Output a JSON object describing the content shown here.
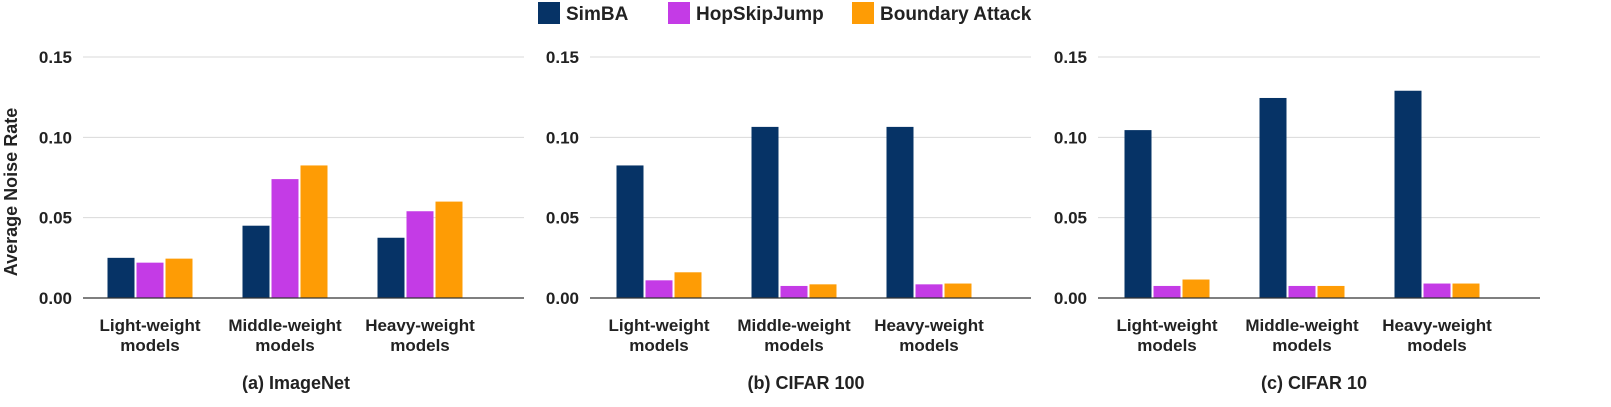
{
  "colors": {
    "SimBA": "#063366",
    "HopSkipJump": "#c43be6",
    "Boundary Attack": "#fe9c05"
  },
  "legend": [
    "SimBA",
    "HopSkipJump",
    "Boundary Attack"
  ],
  "y_axis_label": "Average Noise Rate",
  "chart_data": [
    {
      "type": "bar",
      "title": "(a) ImageNet",
      "categories": [
        [
          "Light-weight",
          "models"
        ],
        [
          "Middle-weight",
          "models"
        ],
        [
          "Heavy-weight",
          "models"
        ]
      ],
      "series": [
        {
          "name": "SimBA",
          "values": [
            0.025,
            0.045,
            0.0375
          ]
        },
        {
          "name": "HopSkipJump",
          "values": [
            0.022,
            0.074,
            0.054
          ]
        },
        {
          "name": "Boundary Attack",
          "values": [
            0.0245,
            0.0825,
            0.06
          ]
        }
      ],
      "ylabel": "Average Noise Rate",
      "ylim": [
        0,
        0.15
      ],
      "yticks": [
        "0.00",
        "0.05",
        "0.10",
        "0.15"
      ],
      "grid": true
    },
    {
      "type": "bar",
      "title": "(b) CIFAR 100",
      "categories": [
        [
          "Light-weight",
          "models"
        ],
        [
          "Middle-weight",
          "models"
        ],
        [
          "Heavy-weight",
          "models"
        ]
      ],
      "series": [
        {
          "name": "SimBA",
          "values": [
            0.0825,
            0.1065,
            0.1065
          ]
        },
        {
          "name": "HopSkipJump",
          "values": [
            0.011,
            0.0075,
            0.0085
          ]
        },
        {
          "name": "Boundary Attack",
          "values": [
            0.016,
            0.0085,
            0.009
          ]
        }
      ],
      "ylabel": "",
      "ylim": [
        0,
        0.15
      ],
      "yticks": [
        "0.00",
        "0.05",
        "0.10",
        "0.15"
      ],
      "grid": true
    },
    {
      "type": "bar",
      "title": "(c) CIFAR 10",
      "categories": [
        [
          "Light-weight",
          "models"
        ],
        [
          "Middle-weight",
          "models"
        ],
        [
          "Heavy-weight",
          "models"
        ]
      ],
      "series": [
        {
          "name": "SimBA",
          "values": [
            0.1045,
            0.1245,
            0.129
          ]
        },
        {
          "name": "HopSkipJump",
          "values": [
            0.0075,
            0.0075,
            0.009
          ]
        },
        {
          "name": "Boundary Attack",
          "values": [
            0.0115,
            0.0075,
            0.009
          ]
        }
      ],
      "ylabel": "",
      "ylim": [
        0,
        0.15
      ],
      "yticks": [
        "0.00",
        "0.05",
        "0.10",
        "0.15"
      ],
      "grid": true
    }
  ]
}
